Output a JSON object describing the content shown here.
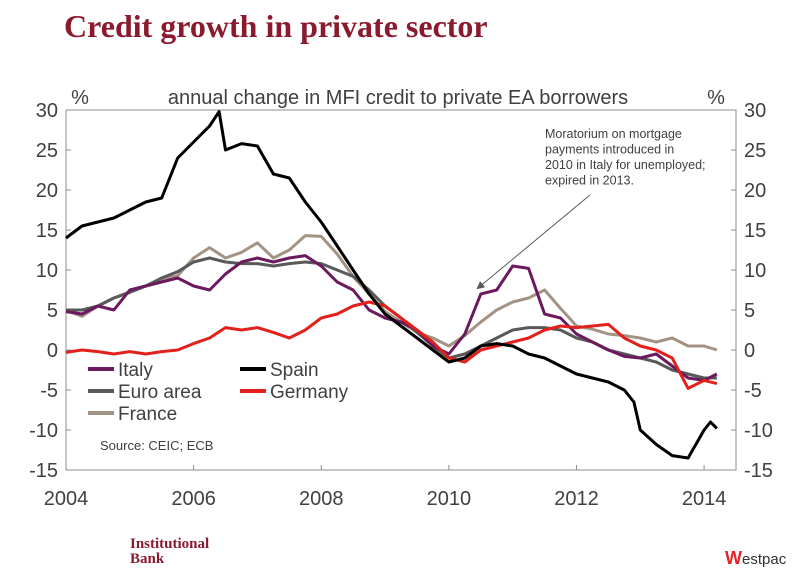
{
  "page": {
    "title": "Credit growth in private sector",
    "footer_left_line1": "Institutional",
    "footer_left_line2": "Bank",
    "footer_right_mark": "W",
    "footer_right_text": "estpac"
  },
  "chart_data": {
    "type": "line",
    "title": "annual change in MFI credit to private EA borrowers",
    "ylabel_left": "%",
    "ylabel_right": "%",
    "ylim": [
      -15,
      30
    ],
    "xlim": [
      2004,
      2014.5
    ],
    "yticks": [
      "30",
      "25",
      "20",
      "15",
      "10",
      "5",
      "0",
      "-5",
      "-10",
      "-15"
    ],
    "xticks": [
      "2004",
      "2006",
      "2008",
      "2010",
      "2012",
      "2014"
    ],
    "source": "Source: CEIC; ECB",
    "annotation": [
      "Moratorium on mortgage",
      "payments introduced in",
      "2010 in Italy for unemployed;",
      "expired in 2013."
    ],
    "legend": [
      {
        "name": "Italy",
        "color": "#6b1a5e"
      },
      {
        "name": "Spain",
        "color": "#000000"
      },
      {
        "name": "Euro area",
        "color": "#595959"
      },
      {
        "name": "Germany",
        "color": "#e3211c"
      },
      {
        "name": "France",
        "color": "#a39384"
      }
    ],
    "series": [
      {
        "name": "France",
        "color": "#a39384",
        "points": [
          [
            2004,
            5
          ],
          [
            2004.25,
            4.2
          ],
          [
            2004.5,
            5.5
          ],
          [
            2004.75,
            6.5
          ],
          [
            2005,
            7.3
          ],
          [
            2005.25,
            8
          ],
          [
            2005.5,
            8.8
          ],
          [
            2005.75,
            9.3
          ],
          [
            2006,
            11.5
          ],
          [
            2006.25,
            12.8
          ],
          [
            2006.5,
            11.5
          ],
          [
            2006.75,
            12.2
          ],
          [
            2007,
            13.4
          ],
          [
            2007.25,
            11.5
          ],
          [
            2007.5,
            12.5
          ],
          [
            2007.75,
            14.3
          ],
          [
            2008,
            14.2
          ],
          [
            2008.25,
            12
          ],
          [
            2008.5,
            9.2
          ],
          [
            2008.75,
            7
          ],
          [
            2009,
            4.8
          ],
          [
            2009.25,
            3.5
          ],
          [
            2009.5,
            2.2
          ],
          [
            2009.75,
            1.5
          ],
          [
            2010,
            0.5
          ],
          [
            2010.25,
            1.8
          ],
          [
            2010.5,
            3.5
          ],
          [
            2010.75,
            5
          ],
          [
            2011,
            6
          ],
          [
            2011.25,
            6.5
          ],
          [
            2011.5,
            7.5
          ],
          [
            2011.75,
            5.2
          ],
          [
            2012,
            3
          ],
          [
            2012.25,
            2.6
          ],
          [
            2012.5,
            2
          ],
          [
            2012.75,
            1.8
          ],
          [
            2013,
            1.5
          ],
          [
            2013.25,
            1
          ],
          [
            2013.5,
            1.5
          ],
          [
            2013.75,
            0.5
          ],
          [
            2014,
            0.5
          ],
          [
            2014.2,
            0
          ]
        ]
      },
      {
        "name": "Euro area",
        "color": "#595959",
        "points": [
          [
            2004,
            5
          ],
          [
            2004.25,
            5
          ],
          [
            2004.5,
            5.5
          ],
          [
            2004.75,
            6.5
          ],
          [
            2005,
            7.2
          ],
          [
            2005.25,
            8
          ],
          [
            2005.5,
            9
          ],
          [
            2005.75,
            9.8
          ],
          [
            2006,
            11
          ],
          [
            2006.25,
            11.5
          ],
          [
            2006.5,
            11
          ],
          [
            2006.75,
            10.8
          ],
          [
            2007,
            10.8
          ],
          [
            2007.25,
            10.5
          ],
          [
            2007.5,
            10.8
          ],
          [
            2007.75,
            11
          ],
          [
            2008,
            10.8
          ],
          [
            2008.25,
            10
          ],
          [
            2008.5,
            9.2
          ],
          [
            2008.75,
            7.5
          ],
          [
            2009,
            5.5
          ],
          [
            2009.25,
            4
          ],
          [
            2009.5,
            2.2
          ],
          [
            2009.75,
            0.5
          ],
          [
            2010,
            -1
          ],
          [
            2010.25,
            -0.5
          ],
          [
            2010.5,
            0.5
          ],
          [
            2010.75,
            1.5
          ],
          [
            2011,
            2.5
          ],
          [
            2011.25,
            2.8
          ],
          [
            2011.5,
            2.8
          ],
          [
            2011.75,
            2.5
          ],
          [
            2012,
            1.5
          ],
          [
            2012.25,
            1
          ],
          [
            2012.5,
            0
          ],
          [
            2012.75,
            -0.5
          ],
          [
            2013,
            -1
          ],
          [
            2013.25,
            -1.5
          ],
          [
            2013.5,
            -2.5
          ],
          [
            2013.75,
            -3
          ],
          [
            2014,
            -3.5
          ],
          [
            2014.2,
            -3.5
          ]
        ]
      },
      {
        "name": "Italy",
        "color": "#6b1a5e",
        "points": [
          [
            2004,
            4.8
          ],
          [
            2004.25,
            4.5
          ],
          [
            2004.5,
            5.5
          ],
          [
            2004.75,
            5
          ],
          [
            2005,
            7.5
          ],
          [
            2005.25,
            8
          ],
          [
            2005.5,
            8.5
          ],
          [
            2005.75,
            9
          ],
          [
            2006,
            8
          ],
          [
            2006.25,
            7.5
          ],
          [
            2006.5,
            9.5
          ],
          [
            2006.75,
            11
          ],
          [
            2007,
            11.5
          ],
          [
            2007.25,
            11
          ],
          [
            2007.5,
            11.5
          ],
          [
            2007.75,
            11.8
          ],
          [
            2008,
            10.5
          ],
          [
            2008.25,
            8.5
          ],
          [
            2008.5,
            7.5
          ],
          [
            2008.75,
            5
          ],
          [
            2009,
            4
          ],
          [
            2009.25,
            3.5
          ],
          [
            2009.5,
            2.5
          ],
          [
            2009.75,
            0.5
          ],
          [
            2010,
            -0.5
          ],
          [
            2010.25,
            2
          ],
          [
            2010.5,
            7
          ],
          [
            2010.75,
            7.5
          ],
          [
            2011,
            10.5
          ],
          [
            2011.25,
            10.2
          ],
          [
            2011.5,
            4.5
          ],
          [
            2011.75,
            4
          ],
          [
            2012,
            2
          ],
          [
            2012.25,
            1
          ],
          [
            2012.5,
            0
          ],
          [
            2012.75,
            -0.8
          ],
          [
            2013,
            -1
          ],
          [
            2013.25,
            -0.5
          ],
          [
            2013.5,
            -2
          ],
          [
            2013.75,
            -3.5
          ],
          [
            2014,
            -3.8
          ],
          [
            2014.2,
            -3
          ]
        ]
      },
      {
        "name": "Germany",
        "color": "#e3211c",
        "points": [
          [
            2004,
            -0.3
          ],
          [
            2004.25,
            0
          ],
          [
            2004.5,
            -0.2
          ],
          [
            2004.75,
            -0.5
          ],
          [
            2005,
            -0.2
          ],
          [
            2005.25,
            -0.5
          ],
          [
            2005.5,
            -0.2
          ],
          [
            2005.75,
            0
          ],
          [
            2006,
            0.8
          ],
          [
            2006.25,
            1.5
          ],
          [
            2006.5,
            2.8
          ],
          [
            2006.75,
            2.5
          ],
          [
            2007,
            2.8
          ],
          [
            2007.25,
            2.2
          ],
          [
            2007.5,
            1.5
          ],
          [
            2007.75,
            2.5
          ],
          [
            2008,
            4
          ],
          [
            2008.25,
            4.5
          ],
          [
            2008.5,
            5.5
          ],
          [
            2008.75,
            6
          ],
          [
            2009,
            5.5
          ],
          [
            2009.25,
            4
          ],
          [
            2009.5,
            2.5
          ],
          [
            2009.75,
            1
          ],
          [
            2010,
            -1
          ],
          [
            2010.25,
            -1.5
          ],
          [
            2010.5,
            0
          ],
          [
            2010.75,
            0.5
          ],
          [
            2011,
            1
          ],
          [
            2011.25,
            1.5
          ],
          [
            2011.5,
            2.5
          ],
          [
            2011.75,
            3
          ],
          [
            2012,
            2.8
          ],
          [
            2012.25,
            3
          ],
          [
            2012.5,
            3.2
          ],
          [
            2012.75,
            1.5
          ],
          [
            2013,
            0.5
          ],
          [
            2013.25,
            0
          ],
          [
            2013.5,
            -1
          ],
          [
            2013.75,
            -4.8
          ],
          [
            2014,
            -3.8
          ],
          [
            2014.2,
            -4.2
          ]
        ]
      },
      {
        "name": "Spain",
        "color": "#000000",
        "points": [
          [
            2004,
            14
          ],
          [
            2004.25,
            15.5
          ],
          [
            2004.5,
            16
          ],
          [
            2004.75,
            16.5
          ],
          [
            2005,
            17.5
          ],
          [
            2005.25,
            18.5
          ],
          [
            2005.5,
            19
          ],
          [
            2005.75,
            24
          ],
          [
            2006,
            26
          ],
          [
            2006.25,
            28
          ],
          [
            2006.4,
            29.8
          ],
          [
            2006.5,
            25
          ],
          [
            2006.75,
            25.8
          ],
          [
            2007,
            25.5
          ],
          [
            2007.25,
            22
          ],
          [
            2007.5,
            21.5
          ],
          [
            2007.75,
            18.5
          ],
          [
            2008,
            16
          ],
          [
            2008.25,
            13
          ],
          [
            2008.5,
            10
          ],
          [
            2008.75,
            7
          ],
          [
            2009,
            4.5
          ],
          [
            2009.25,
            3
          ],
          [
            2009.5,
            1.5
          ],
          [
            2009.75,
            0
          ],
          [
            2010,
            -1.5
          ],
          [
            2010.25,
            -1
          ],
          [
            2010.5,
            0.5
          ],
          [
            2010.75,
            0.8
          ],
          [
            2011,
            0.5
          ],
          [
            2011.25,
            -0.5
          ],
          [
            2011.5,
            -1
          ],
          [
            2011.75,
            -2
          ],
          [
            2012,
            -3
          ],
          [
            2012.25,
            -3.5
          ],
          [
            2012.5,
            -4
          ],
          [
            2012.75,
            -5
          ],
          [
            2012.9,
            -6.5
          ],
          [
            2013,
            -10
          ],
          [
            2013.25,
            -11.8
          ],
          [
            2013.5,
            -13.2
          ],
          [
            2013.75,
            -13.5
          ],
          [
            2014,
            -10
          ],
          [
            2014.1,
            -9
          ],
          [
            2014.2,
            -9.8
          ]
        ]
      }
    ]
  }
}
